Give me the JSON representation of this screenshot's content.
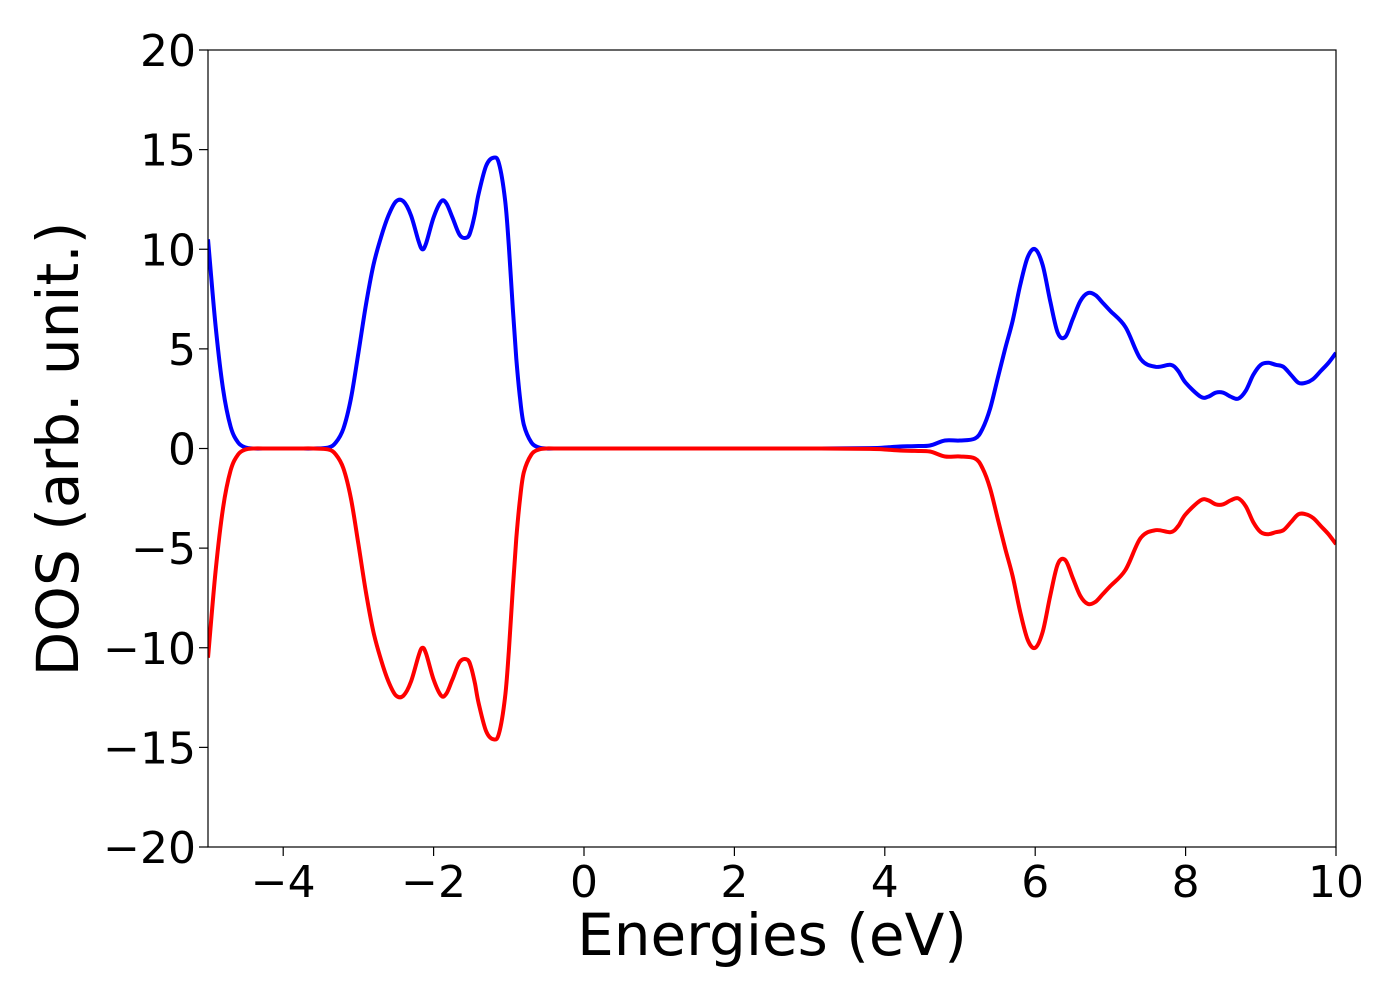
{
  "chart_data": {
    "type": "line",
    "title": "",
    "xlabel": "Energies (eV)",
    "ylabel": "DOS (arb. unit.)",
    "xlim": [
      -5,
      10
    ],
    "ylim": [
      -20,
      20
    ],
    "xticks": [
      -4,
      -2,
      0,
      2,
      4,
      6,
      8,
      10
    ],
    "yticks": [
      -20,
      -15,
      -10,
      -5,
      0,
      5,
      10,
      15,
      20
    ],
    "xtick_labels": [
      "−4",
      "−2",
      "0",
      "2",
      "4",
      "6",
      "8",
      "10"
    ],
    "ytick_labels": [
      "−20",
      "−15",
      "−10",
      "−5",
      "0",
      "5",
      "10",
      "15",
      "20"
    ],
    "grid": false,
    "legend": "none",
    "series": [
      {
        "color": "#0000ff",
        "x": [
          -5.0,
          -4.9,
          -4.8,
          -4.7,
          -4.6,
          -4.5,
          -4.4,
          -4.2,
          -4.0,
          -3.8,
          -3.6,
          -3.4,
          -3.3,
          -3.2,
          -3.1,
          -3.0,
          -2.9,
          -2.8,
          -2.7,
          -2.6,
          -2.5,
          -2.4,
          -2.3,
          -2.2,
          -2.15,
          -2.1,
          -2.0,
          -1.9,
          -1.83,
          -1.75,
          -1.65,
          -1.55,
          -1.5,
          -1.45,
          -1.4,
          -1.3,
          -1.2,
          -1.13,
          -1.05,
          -1.0,
          -0.95,
          -0.9,
          -0.85,
          -0.8,
          -0.7,
          -0.6,
          -0.5,
          -0.4,
          0.0,
          1.0,
          2.0,
          3.0,
          3.8,
          4.0,
          4.2,
          4.4,
          4.6,
          4.8,
          5.0,
          5.2,
          5.3,
          5.4,
          5.5,
          5.6,
          5.7,
          5.8,
          5.9,
          6.0,
          6.1,
          6.2,
          6.3,
          6.4,
          6.5,
          6.6,
          6.7,
          6.8,
          6.9,
          7.0,
          7.2,
          7.4,
          7.6,
          7.8,
          7.9,
          8.0,
          8.2,
          8.3,
          8.4,
          8.5,
          8.6,
          8.7,
          8.8,
          8.9,
          9.0,
          9.1,
          9.2,
          9.3,
          9.4,
          9.5,
          9.6,
          9.7,
          9.8,
          9.9,
          10.0
        ],
        "y": [
          10.5,
          6.2,
          3.0,
          1.1,
          0.3,
          0.05,
          0.0,
          0.0,
          0.0,
          0.0,
          0.0,
          0.05,
          0.3,
          1.0,
          2.5,
          4.8,
          7.2,
          9.2,
          10.6,
          11.7,
          12.4,
          12.4,
          11.7,
          10.4,
          10.0,
          10.3,
          11.6,
          12.4,
          12.3,
          11.6,
          10.7,
          10.6,
          11.0,
          11.8,
          12.8,
          14.2,
          14.6,
          14.3,
          12.5,
          10.2,
          7.2,
          4.5,
          2.5,
          1.2,
          0.3,
          0.05,
          0.0,
          0.0,
          0.0,
          0.0,
          0.0,
          0.0,
          0.02,
          0.05,
          0.1,
          0.12,
          0.15,
          0.4,
          0.4,
          0.5,
          1.0,
          2.0,
          3.5,
          5.0,
          6.4,
          8.2,
          9.6,
          10.0,
          9.2,
          7.4,
          5.8,
          5.6,
          6.5,
          7.4,
          7.8,
          7.7,
          7.3,
          6.9,
          6.1,
          4.5,
          4.1,
          4.2,
          3.9,
          3.3,
          2.6,
          2.6,
          2.8,
          2.8,
          2.6,
          2.5,
          2.9,
          3.7,
          4.2,
          4.3,
          4.2,
          4.1,
          3.7,
          3.3,
          3.3,
          3.5,
          3.9,
          4.3,
          4.8
        ]
      },
      {
        "color": "#ff0000",
        "x": [
          -5.0,
          -4.9,
          -4.8,
          -4.7,
          -4.6,
          -4.5,
          -4.4,
          -4.2,
          -4.0,
          -3.8,
          -3.6,
          -3.4,
          -3.3,
          -3.2,
          -3.1,
          -3.0,
          -2.9,
          -2.8,
          -2.7,
          -2.6,
          -2.5,
          -2.4,
          -2.3,
          -2.2,
          -2.15,
          -2.1,
          -2.0,
          -1.9,
          -1.83,
          -1.75,
          -1.65,
          -1.55,
          -1.5,
          -1.45,
          -1.4,
          -1.3,
          -1.2,
          -1.13,
          -1.05,
          -1.0,
          -0.95,
          -0.9,
          -0.85,
          -0.8,
          -0.7,
          -0.6,
          -0.5,
          -0.4,
          0.0,
          1.0,
          2.0,
          3.0,
          3.8,
          4.0,
          4.2,
          4.4,
          4.6,
          4.8,
          5.0,
          5.2,
          5.3,
          5.4,
          5.5,
          5.6,
          5.7,
          5.8,
          5.9,
          6.0,
          6.1,
          6.2,
          6.3,
          6.4,
          6.5,
          6.6,
          6.7,
          6.8,
          6.9,
          7.0,
          7.2,
          7.4,
          7.6,
          7.8,
          7.9,
          8.0,
          8.2,
          8.3,
          8.4,
          8.5,
          8.6,
          8.7,
          8.8,
          8.9,
          9.0,
          9.1,
          9.2,
          9.3,
          9.4,
          9.5,
          9.6,
          9.7,
          9.8,
          9.9,
          10.0
        ],
        "y": [
          -10.5,
          -6.2,
          -3.0,
          -1.1,
          -0.3,
          -0.05,
          0.0,
          0.0,
          0.0,
          0.0,
          0.0,
          -0.05,
          -0.3,
          -1.0,
          -2.5,
          -4.8,
          -7.2,
          -9.2,
          -10.6,
          -11.7,
          -12.4,
          -12.4,
          -11.7,
          -10.4,
          -10.0,
          -10.3,
          -11.6,
          -12.4,
          -12.3,
          -11.6,
          -10.7,
          -10.6,
          -11.0,
          -11.8,
          -12.8,
          -14.2,
          -14.6,
          -14.3,
          -12.5,
          -10.2,
          -7.2,
          -4.5,
          -2.5,
          -1.2,
          -0.3,
          -0.05,
          0.0,
          0.0,
          0.0,
          0.0,
          0.0,
          0.0,
          -0.02,
          -0.05,
          -0.1,
          -0.12,
          -0.15,
          -0.4,
          -0.4,
          -0.5,
          -1.0,
          -2.0,
          -3.5,
          -5.0,
          -6.4,
          -8.2,
          -9.6,
          -10.0,
          -9.2,
          -7.4,
          -5.8,
          -5.6,
          -6.5,
          -7.4,
          -7.8,
          -7.7,
          -7.3,
          -6.9,
          -6.1,
          -4.5,
          -4.1,
          -4.2,
          -3.9,
          -3.3,
          -2.6,
          -2.6,
          -2.8,
          -2.8,
          -2.6,
          -2.5,
          -2.9,
          -3.7,
          -4.2,
          -4.3,
          -4.2,
          -4.1,
          -3.7,
          -3.3,
          -3.3,
          -3.5,
          -3.9,
          -4.3,
          -4.8
        ]
      }
    ]
  }
}
